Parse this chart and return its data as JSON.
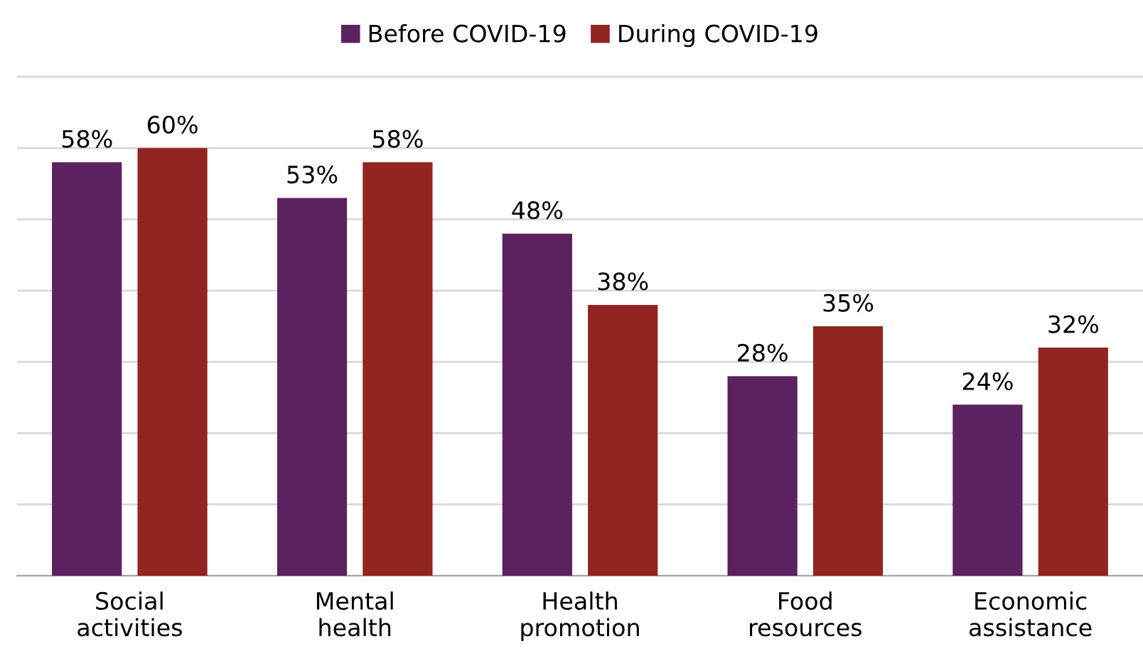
{
  "chart_data": {
    "type": "bar",
    "categories": [
      "Social\nactivities",
      "Mental\nhealth",
      "Health\npromotion",
      "Food\nresources",
      "Economic\nassistance"
    ],
    "series": [
      {
        "name": "Before COVID-19",
        "color": "#5c2160",
        "values": [
          58,
          53,
          48,
          28,
          24
        ],
        "value_labels": [
          "58%",
          "53%",
          "48%",
          "28%",
          "24%"
        ]
      },
      {
        "name": "During COVID-19",
        "color": "#92251f",
        "values": [
          60,
          58,
          38,
          35,
          32
        ],
        "value_labels": [
          "60%",
          "58%",
          "38%",
          "35%",
          "32%"
        ]
      }
    ],
    "tick_labels": "x",
    "grid": "y",
    "legend": "top"
  }
}
